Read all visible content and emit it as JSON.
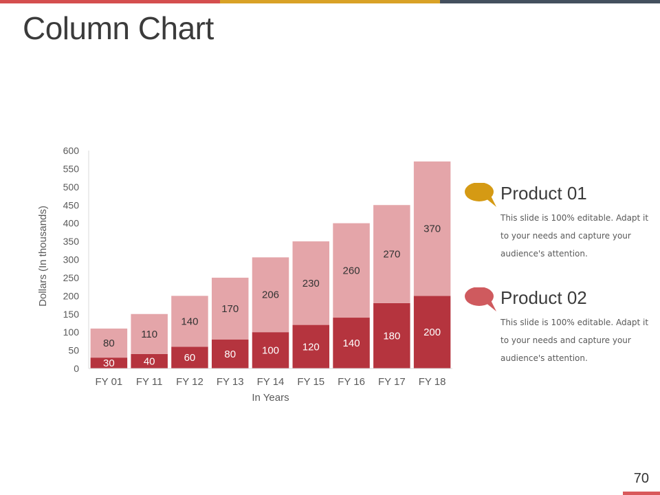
{
  "slide": {
    "title": "Column Chart",
    "page_number": "70",
    "top_bar_colors": [
      "#d44e4e",
      "#d9a227",
      "#44505e"
    ],
    "corner_bar_color": "#d9595b"
  },
  "legend": {
    "items": [
      {
        "title": "Product 01",
        "description": "This slide is 100% editable. Adapt it to your needs and capture your audience's attention.",
        "bubble_color": "#d59a14",
        "bubble_icon": "speech-bubble-icon"
      },
      {
        "title": "Product 02",
        "description": "This slide is 100% editable. Adapt it to your needs and capture your audience's attention.",
        "bubble_color": "#cf5a5e",
        "bubble_icon": "speech-bubble-icon"
      }
    ]
  },
  "chart_data": {
    "type": "bar",
    "stacked": true,
    "title": "",
    "xlabel": "In Years",
    "ylabel": "Dollars (In thousands)",
    "ylim": [
      0,
      600
    ],
    "ytick_step": 50,
    "grid": false,
    "categories": [
      "FY 01",
      "FY 11",
      "FY 12",
      "FY 13",
      "FY 14",
      "FY 15",
      "FY 16",
      "FY 17",
      "FY 18"
    ],
    "series": [
      {
        "name": "Product 02",
        "color": "#b5343e",
        "label_color": "#ffffff",
        "values": [
          30,
          40,
          60,
          80,
          100,
          120,
          140,
          180,
          200
        ]
      },
      {
        "name": "Product 01",
        "color": "#e4a5a9",
        "label_color": "#333333",
        "values": [
          80,
          110,
          140,
          170,
          206,
          230,
          260,
          270,
          370
        ]
      }
    ]
  }
}
